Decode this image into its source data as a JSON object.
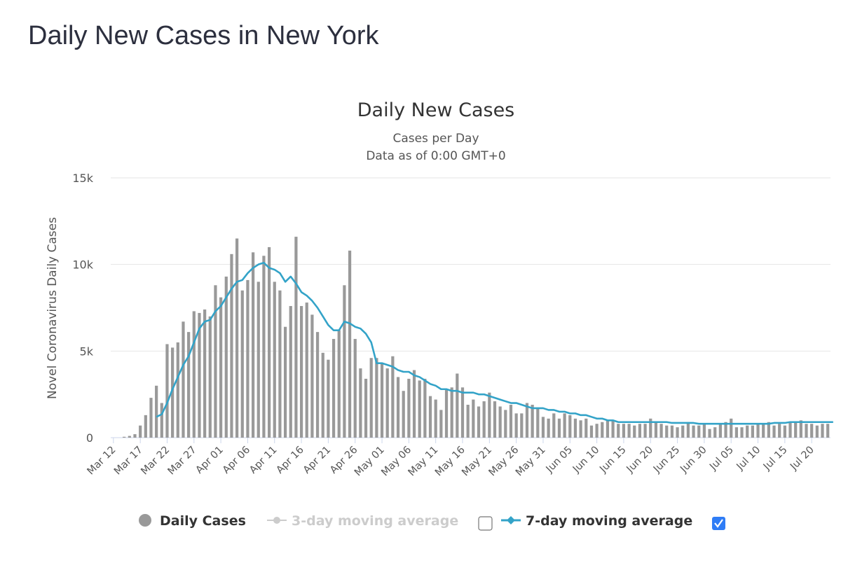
{
  "page": {
    "heading": "Daily New Cases in New York"
  },
  "colors": {
    "bar": "#999999",
    "line": "#33a3c8",
    "grid": "#e6e6e6",
    "axis": "#ccd6eb",
    "legend_active": "#333333",
    "legend_inactive": "#cccccc",
    "checkbox_checked": "#2f7df6"
  },
  "chart_data": {
    "type": "bar",
    "title": "Daily New Cases",
    "subtitle_lines": [
      "Cases per Day",
      "Data as of 0:00 GMT+0"
    ],
    "ylabel": "Novel Coronavirus Daily Cases",
    "xlabel": "",
    "ylim": [
      0,
      15000
    ],
    "yticks": [
      {
        "value": 0,
        "label": "0"
      },
      {
        "value": 5000,
        "label": "5k"
      },
      {
        "value": 10000,
        "label": "10k"
      },
      {
        "value": 15000,
        "label": "15k"
      }
    ],
    "xtick_labels": [
      "Mar 12",
      "Mar 17",
      "Mar 22",
      "Mar 27",
      "Apr 01",
      "Apr 06",
      "Apr 11",
      "Apr 16",
      "Apr 21",
      "Apr 26",
      "May 01",
      "May 06",
      "May 11",
      "May 16",
      "May 21",
      "May 26",
      "May 31",
      "Jun 05",
      "Jun 10",
      "Jun 15",
      "Jun 20",
      "Jun 25",
      "Jun 30",
      "Jul 05",
      "Jul 10",
      "Jul 15",
      "Jul 20"
    ],
    "x_start": "Mar 12",
    "x_end": "Jul 22",
    "grid": true,
    "legend_position": "bottom",
    "legend": [
      {
        "label": "Daily Cases",
        "marker": "circle",
        "active": true
      },
      {
        "label": "3-day moving average",
        "marker": "line-circle",
        "active": false,
        "checkbox": false
      },
      {
        "label": "7-day moving average",
        "marker": "line-diamond",
        "active": true,
        "checkbox": true
      }
    ],
    "series": [
      {
        "name": "Daily Cases",
        "type": "bar",
        "values": [
          0,
          0,
          50,
          100,
          200,
          700,
          1300,
          2300,
          3000,
          2000,
          5400,
          5200,
          5500,
          6700,
          6100,
          7300,
          7200,
          7400,
          7000,
          8800,
          8100,
          9300,
          10600,
          11500,
          8500,
          9100,
          10700,
          9000,
          10500,
          11000,
          9000,
          8500,
          6400,
          7600,
          11600,
          7600,
          7800,
          7100,
          6100,
          4900,
          4500,
          5700,
          6200,
          8800,
          10800,
          5700,
          4000,
          3400,
          4600,
          4600,
          4300,
          4000,
          4700,
          3500,
          2700,
          3400,
          3900,
          3300,
          3400,
          2400,
          2200,
          1600,
          2800,
          2900,
          3700,
          2900,
          1900,
          2200,
          1800,
          2100,
          2600,
          2100,
          1800,
          1600,
          1900,
          1400,
          1400,
          2000,
          1900,
          1700,
          1200,
          1100,
          1400,
          1100,
          1400,
          1300,
          1100,
          1000,
          1100,
          700,
          800,
          900,
          1000,
          1000,
          800,
          800,
          800,
          700,
          800,
          800,
          1100,
          900,
          800,
          700,
          700,
          600,
          700,
          900,
          700,
          700,
          800,
          500,
          600,
          800,
          900,
          1100,
          600,
          600,
          700,
          700,
          800,
          800,
          900,
          700,
          800,
          700,
          900,
          900,
          1000,
          800,
          800,
          700,
          800,
          800
        ]
      },
      {
        "name": "7-day moving average",
        "type": "line",
        "values": [
          null,
          null,
          null,
          null,
          null,
          null,
          null,
          null,
          1200,
          1350,
          2000,
          2800,
          3500,
          4200,
          4700,
          5500,
          6300,
          6700,
          6800,
          7300,
          7600,
          8100,
          8600,
          9000,
          9100,
          9500,
          9800,
          10000,
          10100,
          9800,
          9700,
          9500,
          9000,
          9300,
          8900,
          8400,
          8200,
          7900,
          7500,
          7000,
          6500,
          6200,
          6200,
          6700,
          6600,
          6400,
          6300,
          6000,
          5500,
          4300,
          4300,
          4200,
          4100,
          3900,
          3800,
          3800,
          3600,
          3500,
          3300,
          3100,
          3000,
          2800,
          2800,
          2700,
          2700,
          2600,
          2600,
          2600,
          2500,
          2500,
          2400,
          2300,
          2200,
          2100,
          2000,
          2000,
          1900,
          1800,
          1700,
          1700,
          1700,
          1600,
          1600,
          1500,
          1500,
          1400,
          1400,
          1300,
          1300,
          1200,
          1100,
          1100,
          1000,
          1000,
          900,
          900,
          900,
          900,
          900,
          900,
          900,
          900,
          900,
          900,
          850,
          850,
          850,
          850,
          850,
          800,
          800,
          800,
          800,
          800,
          800,
          800,
          800,
          800,
          800,
          800,
          800,
          800,
          800,
          850,
          850,
          850,
          900,
          900,
          900,
          900,
          900,
          900,
          900,
          900,
          900
        ]
      }
    ]
  }
}
